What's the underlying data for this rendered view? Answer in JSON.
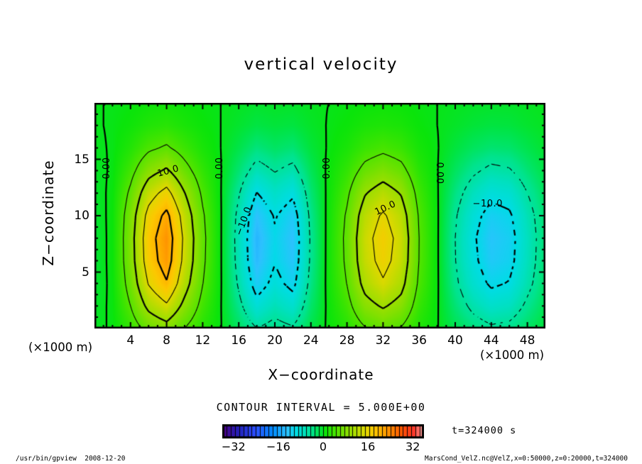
{
  "title": "vertical velocity",
  "axes": {
    "x": {
      "label": "X−coordinate",
      "unit": "(×1000 m)",
      "range": [
        0,
        50
      ],
      "ticks": [
        4,
        8,
        12,
        16,
        20,
        24,
        28,
        32,
        36,
        40,
        44,
        48
      ]
    },
    "z": {
      "label": "Z−coordinate",
      "unit": "(×1000 m)",
      "range": [
        0,
        20
      ],
      "ticks": [
        5,
        10,
        15
      ]
    }
  },
  "annotations": {
    "contour_interval": "CONTOUR INTERVAL = 5.000E+00",
    "time": "t=324000 s"
  },
  "footer": {
    "left": "/usr/bin/gpview  2008-12-20",
    "right": "MarsCond_VelZ.nc@VelZ,x=0:50000,z=0:20000,t=324000"
  },
  "colorbar": {
    "labels": [
      -32,
      -16,
      0,
      16,
      32
    ],
    "range": [
      -36,
      36
    ],
    "segments": 48,
    "stops": [
      [
        -36,
        "#4b0082"
      ],
      [
        -30,
        "#2222bb"
      ],
      [
        -24,
        "#2b50ff"
      ],
      [
        -18,
        "#008cff"
      ],
      [
        -13,
        "#2ec1ff"
      ],
      [
        -10,
        "#00dce6"
      ],
      [
        -7,
        "#00e0c0"
      ],
      [
        -4,
        "#00e38c"
      ],
      [
        -1.5,
        "#00e446"
      ],
      [
        0.5,
        "#0ae40a"
      ],
      [
        4,
        "#46e400"
      ],
      [
        8,
        "#82e000"
      ],
      [
        12,
        "#b4dc00"
      ],
      [
        15,
        "#e0d800"
      ],
      [
        18,
        "#fcc800"
      ],
      [
        21,
        "#ffaa00"
      ],
      [
        24,
        "#ff8800"
      ],
      [
        28,
        "#ff5500"
      ],
      [
        32,
        "#ff3322"
      ],
      [
        36,
        "#ffaaaa"
      ]
    ]
  },
  "chart_data": {
    "type": "heatmap",
    "title": "vertical velocity",
    "xlabel": "X-coordinate (×1000 m)",
    "ylabel": "Z-coordinate (×1000 m)",
    "xlim": [
      0,
      50
    ],
    "ylim": [
      0,
      20
    ],
    "grid": false,
    "contour_interval": 5,
    "contour_levels": [
      -15,
      -10,
      -5,
      0,
      5,
      10,
      15,
      20
    ],
    "x": [
      0,
      2,
      4,
      6,
      8,
      10,
      12,
      14,
      16,
      18,
      20,
      22,
      24,
      26,
      28,
      30,
      32,
      34,
      36,
      38,
      40,
      42,
      44,
      46,
      48,
      50
    ],
    "z": [
      0,
      2,
      4,
      6,
      8,
      10,
      12,
      14,
      16,
      18,
      20
    ],
    "values": [
      [
        -0.4,
        0.2,
        2.8,
        6.3,
        8.1,
        4.9,
        2.1,
        0.1,
        -2.3,
        -4.9,
        -3.7,
        -4.6,
        -1.6,
        0.4,
        2.1,
        4.7,
        6.0,
        4.7,
        1.8,
        0.1,
        -1.8,
        -3.3,
        -4.4,
        -4.0,
        -2.5,
        -1.1
      ],
      [
        -0.6,
        0.3,
        5.0,
        11.2,
        14.3,
        8.7,
        3.7,
        0.1,
        -4.0,
        -8.7,
        -6.5,
        -8.1,
        -2.8,
        0.6,
        3.7,
        8.4,
        10.5,
        8.4,
        3.1,
        0.2,
        -3.1,
        -5.9,
        -7.8,
        -7.1,
        -4.3,
        -1.9
      ],
      [
        -0.9,
        0.4,
        6.8,
        15.3,
        19.6,
        11.9,
        5.1,
        0.2,
        -5.5,
        -11.9,
        -8.9,
        -11.1,
        -3.8,
        0.9,
        5.1,
        11.5,
        14.5,
        11.5,
        4.3,
        0.3,
        -4.3,
        -8.1,
        -10.6,
        -9.8,
        -6.0,
        -2.6
      ],
      [
        -1.0,
        0.5,
        7.8,
        17.5,
        22.3,
        13.6,
        5.8,
        0.2,
        -6.3,
        -13.6,
        -10.2,
        -12.6,
        -4.4,
        1.0,
        5.8,
        13.1,
        16.5,
        13.1,
        4.9,
        0.3,
        -4.9,
        -9.2,
        -12.1,
        -11.2,
        -6.8,
        -2.9
      ],
      [
        -1.0,
        0.5,
        8.0,
        18.0,
        23.0,
        14.0,
        6.0,
        0.2,
        -6.5,
        -14.0,
        -10.5,
        -13.0,
        -4.5,
        1.0,
        6.0,
        13.5,
        17.0,
        13.5,
        5.0,
        0.3,
        -5.0,
        -9.5,
        -12.5,
        -11.5,
        -7.0,
        -3.0
      ],
      [
        -0.9,
        0.5,
        7.4,
        16.6,
        21.2,
        12.9,
        5.5,
        0.2,
        -6.0,
        -12.9,
        -9.7,
        -12.0,
        -4.1,
        0.9,
        5.5,
        12.4,
        15.6,
        12.4,
        4.6,
        0.3,
        -4.6,
        -8.7,
        -11.5,
        -10.6,
        -6.4,
        -2.8
      ],
      [
        -0.7,
        0.4,
        5.8,
        13.0,
        16.6,
        10.1,
        4.3,
        0.1,
        -4.7,
        -10.1,
        -7.6,
        -9.4,
        -3.2,
        0.7,
        4.3,
        9.7,
        12.2,
        9.7,
        3.6,
        0.2,
        -3.6,
        -6.8,
        -9.0,
        -8.3,
        -5.0,
        -2.2
      ],
      [
        -0.5,
        0.2,
        3.7,
        8.3,
        10.6,
        6.4,
        2.8,
        0.1,
        -3.0,
        -6.4,
        -4.8,
        -6.0,
        -2.1,
        0.5,
        2.8,
        6.2,
        7.8,
        6.2,
        2.3,
        0.1,
        -2.3,
        -4.4,
        -5.8,
        -5.3,
        -3.2,
        -1.4
      ],
      [
        -0.2,
        0.1,
        1.9,
        4.3,
        5.5,
        3.4,
        1.4,
        0.0,
        -1.6,
        -3.4,
        -2.5,
        -3.1,
        -1.1,
        0.2,
        1.4,
        3.2,
        4.1,
        3.2,
        1.2,
        0.1,
        -1.2,
        -2.3,
        -3.0,
        -2.8,
        -1.7,
        -0.7
      ],
      [
        -0.1,
        0.1,
        0.8,
        1.8,
        2.3,
        1.4,
        0.6,
        0.0,
        -0.7,
        -1.4,
        -1.1,
        -1.3,
        -0.5,
        0.1,
        0.6,
        1.4,
        1.7,
        1.4,
        0.5,
        0.0,
        -0.5,
        -1.0,
        -1.3,
        -1.2,
        -0.7,
        -0.3
      ],
      [
        0.0,
        0.0,
        0.3,
        0.7,
        0.9,
        0.6,
        0.2,
        0.0,
        -0.3,
        -0.6,
        -0.4,
        -0.5,
        -0.2,
        0.0,
        0.2,
        0.5,
        0.7,
        0.5,
        0.2,
        0.0,
        -0.2,
        -0.4,
        -0.5,
        -0.5,
        -0.3,
        -0.1
      ]
    ],
    "contour_labels": [
      {
        "text": "0.00",
        "x": 1.45,
        "z": 14.2,
        "rot": -90
      },
      {
        "text": "10.0",
        "x": 8.2,
        "z": 13.9,
        "rot": -15
      },
      {
        "text": "0.00",
        "x": 13.9,
        "z": 14.2,
        "rot": -90
      },
      {
        "text": "−10.0",
        "x": 16.6,
        "z": 9.5,
        "rot": -70
      },
      {
        "text": "0.00",
        "x": 25.8,
        "z": 14.2,
        "rot": -90
      },
      {
        "text": "10.0",
        "x": 32.3,
        "z": 10.6,
        "rot": -25
      },
      {
        "text": "0.00",
        "x": 38.2,
        "z": 13.8,
        "rot": 90
      },
      {
        "text": "−10.0",
        "x": 43.6,
        "z": 11.0,
        "rot": 0
      }
    ]
  }
}
